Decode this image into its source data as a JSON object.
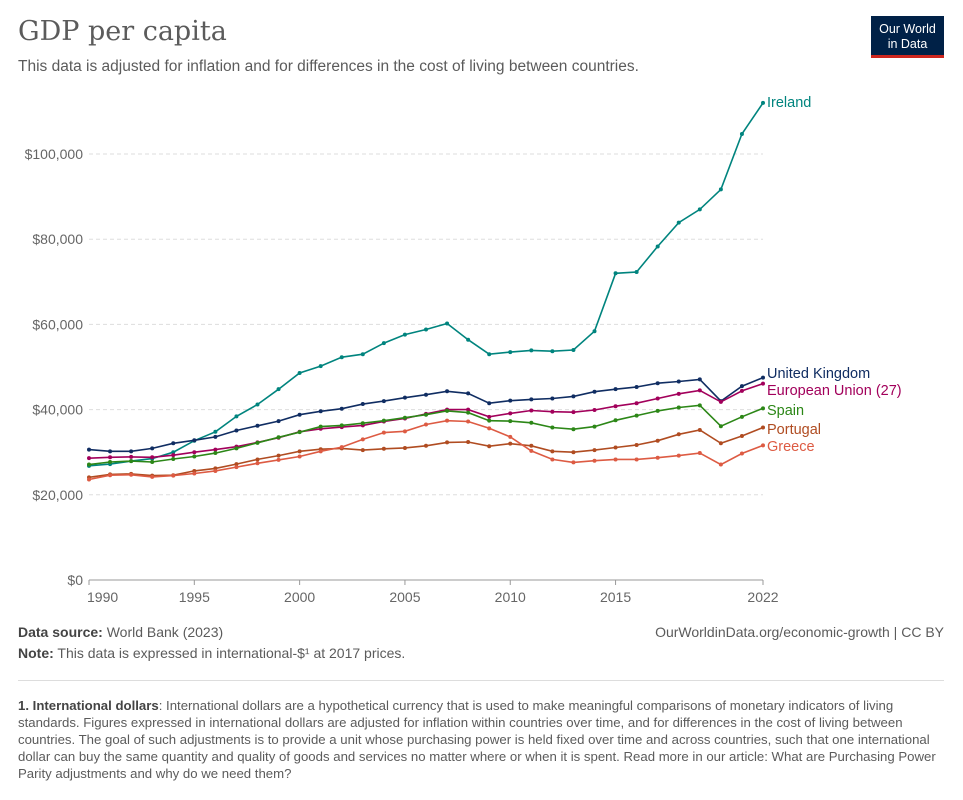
{
  "header": {
    "title": "GDP per capita",
    "subtitle": "This data is adjusted for inflation and for differences in the cost of living between countries.",
    "logo_line1": "Our World",
    "logo_line2": "in Data"
  },
  "footer": {
    "source_label": "Data source:",
    "source_text": "World Bank (2023)",
    "note_label": "Note:",
    "note_text": "This data is expressed in international-$¹ at 2017 prices.",
    "credit": "OurWorldinData.org/economic-growth | CC BY",
    "footnote_label": "1. International dollars",
    "footnote_text": ": International dollars are a hypothetical currency that is used to make meaningful comparisons of monetary indicators of living standards. Figures expressed in international dollars are adjusted for inflation within countries over time, and for differences in the cost of living between countries. The goal of such adjustments is to provide a unit whose purchasing power is held fixed over time and across countries, such that one international dollar can buy the same quantity and quality of goods and services no matter where or when it is spent. Read more in our article: What are Purchasing Power Parity adjustments and why do we need them?"
  },
  "chart_data": {
    "type": "line",
    "title": "GDP per capita",
    "x": [
      1990,
      1991,
      1992,
      1993,
      1994,
      1995,
      1996,
      1997,
      1998,
      1999,
      2000,
      2001,
      2002,
      2003,
      2004,
      2005,
      2006,
      2007,
      2008,
      2009,
      2010,
      2011,
      2012,
      2013,
      2014,
      2015,
      2016,
      2017,
      2018,
      2019,
      2020,
      2021,
      2022
    ],
    "xlim": [
      1990,
      2022
    ],
    "ylim": [
      0,
      110000
    ],
    "x_ticks": [
      "1990",
      "1995",
      "2000",
      "2005",
      "2010",
      "2015",
      "2022"
    ],
    "x_tick_values": [
      1990,
      1995,
      2000,
      2005,
      2010,
      2015,
      2022
    ],
    "y_ticks": [
      "$0",
      "$20,000",
      "$40,000",
      "$60,000",
      "$80,000",
      "$100,000"
    ],
    "y_tick_values": [
      0,
      20000,
      40000,
      60000,
      80000,
      100000
    ],
    "grid": "horizontal",
    "legend": "labels at line ends (right)",
    "series": [
      {
        "name": "Ireland",
        "color": "#00847e",
        "values": [
          26800,
          27200,
          27900,
          28500,
          30000,
          32700,
          34800,
          38400,
          41200,
          44800,
          48600,
          50200,
          52300,
          53000,
          55600,
          57600,
          58800,
          60200,
          56400,
          53000,
          53500,
          53900,
          53700,
          54000,
          58400,
          72000,
          72300,
          78300,
          83900,
          87000,
          91700,
          104700,
          112000
        ]
      },
      {
        "name": "United Kingdom",
        "color": "#102d62",
        "values": [
          30600,
          30200,
          30200,
          30900,
          32100,
          32800,
          33600,
          35100,
          36200,
          37300,
          38800,
          39600,
          40200,
          41300,
          42000,
          42800,
          43500,
          44300,
          43800,
          41500,
          42100,
          42400,
          42600,
          43100,
          44200,
          44800,
          45300,
          46200,
          46600,
          47100,
          42000,
          45500,
          47500
        ]
      },
      {
        "name": "European Union (27)",
        "color": "#a2005b",
        "values": [
          28600,
          28800,
          28900,
          28800,
          29300,
          30000,
          30600,
          31300,
          32300,
          33400,
          34800,
          35500,
          35900,
          36300,
          37200,
          37900,
          39000,
          40000,
          40000,
          38300,
          39100,
          39800,
          39500,
          39400,
          39900,
          40800,
          41500,
          42600,
          43700,
          44500,
          41800,
          44400,
          46100
        ]
      },
      {
        "name": "Spain",
        "color": "#2c8717",
        "values": [
          27100,
          27700,
          27900,
          27700,
          28400,
          29000,
          29800,
          30900,
          32200,
          33500,
          34700,
          36000,
          36300,
          36800,
          37400,
          38100,
          38800,
          39700,
          39300,
          37400,
          37300,
          36900,
          35800,
          35400,
          36000,
          37500,
          38600,
          39700,
          40500,
          41000,
          36100,
          38300,
          40300
        ]
      },
      {
        "name": "Portugal",
        "color": "#b04c21",
        "values": [
          24100,
          24800,
          24900,
          24500,
          24600,
          25600,
          26200,
          27200,
          28300,
          29200,
          30200,
          30700,
          30900,
          30500,
          30800,
          31000,
          31500,
          32300,
          32400,
          31400,
          32000,
          31500,
          30200,
          30000,
          30500,
          31100,
          31700,
          32700,
          34200,
          35200,
          32100,
          33800,
          35800
        ]
      },
      {
        "name": "Greece",
        "color": "#dd5b43",
        "values": [
          23600,
          24600,
          24700,
          24200,
          24500,
          25000,
          25600,
          26500,
          27400,
          28200,
          29000,
          30200,
          31200,
          33000,
          34600,
          34900,
          36500,
          37400,
          37200,
          35600,
          33600,
          30300,
          28300,
          27600,
          28000,
          28300,
          28300,
          28700,
          29200,
          29800,
          27100,
          29700,
          31600
        ]
      }
    ]
  }
}
